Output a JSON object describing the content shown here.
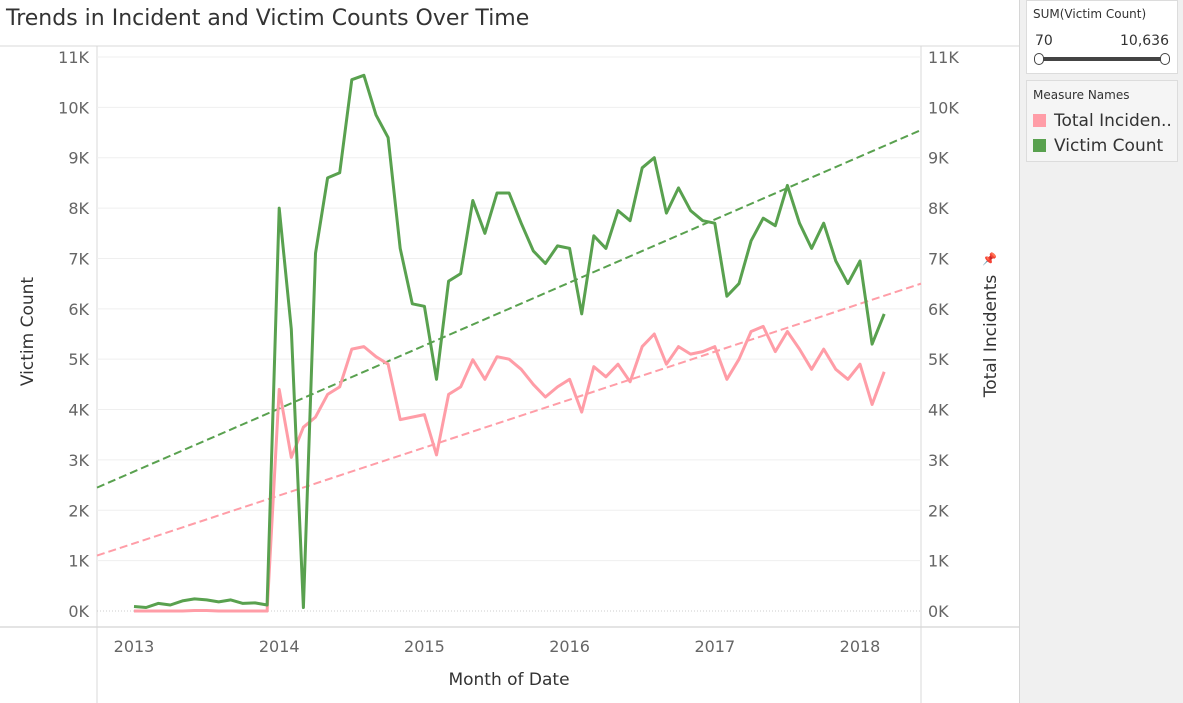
{
  "title": "Trends in Incident and Victim Counts Over Time",
  "filter": {
    "title": "SUM(Victim Count)",
    "min_label": "70",
    "max_label": "10,636"
  },
  "legend": {
    "title": "Measure Names",
    "items": [
      {
        "label": "Total Inciden..",
        "color": "#ff9da7"
      },
      {
        "label": "Victim Count",
        "color": "#59a14f"
      }
    ]
  },
  "chart_data": {
    "type": "line",
    "xlabel": "Month of Date",
    "ylabel_left": "Victim Count",
    "ylabel_right": "Total Incidents",
    "ylim": [
      0,
      11000
    ],
    "yticks": [
      "0K",
      "1K",
      "2K",
      "3K",
      "4K",
      "5K",
      "6K",
      "7K",
      "8K",
      "9K",
      "10K",
      "11K"
    ],
    "xticks": [
      "2013",
      "2014",
      "2015",
      "2016",
      "2017",
      "2018"
    ],
    "x_start": "2013-01",
    "series": [
      {
        "name": "Victim Count",
        "color": "#59a14f",
        "values": [
          90,
          70,
          150,
          120,
          200,
          240,
          220,
          180,
          220,
          150,
          160,
          120,
          8000,
          5600,
          70,
          7100,
          8600,
          8700,
          10550,
          10636,
          9850,
          9400,
          7200,
          6100,
          6050,
          4600,
          6550,
          6700,
          8150,
          7500,
          8300,
          8300,
          7700,
          7150,
          6900,
          7250,
          7200,
          5900,
          7450,
          7200,
          7950,
          7750,
          8800,
          9000,
          7900,
          8400,
          7950,
          7750,
          7700,
          6250,
          6500,
          7350,
          7800,
          7650,
          8450,
          7700,
          7200,
          7700,
          6950,
          6500,
          6950,
          5300,
          5900
        ],
        "trend": [
          2450,
          9550
        ]
      },
      {
        "name": "Total Incidents",
        "color": "#ff9da7",
        "values": [
          0,
          0,
          0,
          0,
          0,
          10,
          10,
          0,
          0,
          0,
          0,
          0,
          4400,
          3050,
          3650,
          3850,
          4300,
          4450,
          5200,
          5250,
          5050,
          4900,
          3800,
          3850,
          3900,
          3100,
          4300,
          4450,
          4990,
          4600,
          5050,
          5000,
          4800,
          4500,
          4250,
          4450,
          4600,
          3950,
          4850,
          4650,
          4900,
          4550,
          5250,
          5500,
          4900,
          5250,
          5100,
          5150,
          5250,
          4600,
          5000,
          5550,
          5650,
          5150,
          5550,
          5200,
          4800,
          5200,
          4800,
          4600,
          4900,
          4100,
          4750
        ],
        "trend": [
          1100,
          6500
        ]
      }
    ],
    "grid": true,
    "legend_position": "right"
  }
}
